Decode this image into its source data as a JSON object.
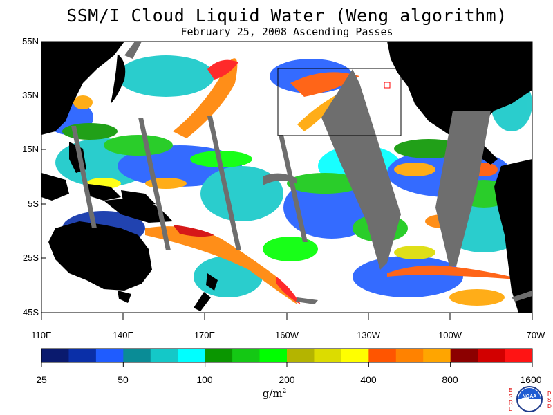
{
  "title": "SSM/I Cloud Liquid Water (Weng algorithm)",
  "subtitle": "February 25, 2008  Ascending Passes",
  "map": {
    "lat_labels": [
      "55N",
      "35N",
      "15N",
      "5S",
      "25S",
      "45S"
    ],
    "lon_labels": [
      "110E",
      "140E",
      "170E",
      "160W",
      "130W",
      "100W",
      "70W"
    ],
    "ocean_color": "#ffffff",
    "land_color": "#000000",
    "no_data_color": "#6e6e6e"
  },
  "colorbar": {
    "labels": [
      "25",
      "50",
      "100",
      "200",
      "400",
      "800",
      "1600"
    ],
    "units": "g/m",
    "units_sup": "2",
    "colors": [
      "#0a1a6e",
      "#0a2fa8",
      "#1f5cff",
      "#0a8c96",
      "#14c8c8",
      "#00ffff",
      "#0a9600",
      "#14c814",
      "#00ff00",
      "#b4b400",
      "#dcdc00",
      "#ffff00",
      "#ff5500",
      "#ff8200",
      "#ffa500",
      "#8c0000",
      "#d20000",
      "#ff1414"
    ]
  },
  "logo": {
    "left_letters": [
      "E",
      "S",
      "R",
      "L"
    ],
    "right_letters": [
      "P",
      "S",
      "D"
    ],
    "center_text": "NOAA"
  }
}
